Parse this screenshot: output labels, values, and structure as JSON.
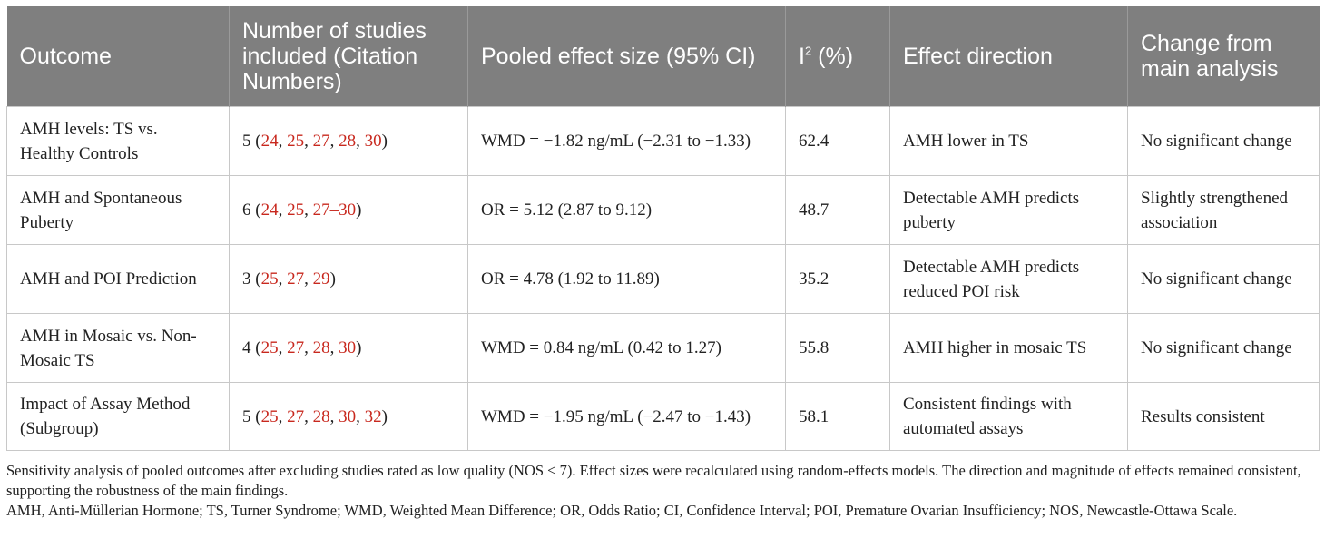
{
  "table": {
    "headers": {
      "outcome": "Outcome",
      "studies": "Number of studies included (Citation Numbers)",
      "effect": "Pooled effect size (95% CI)",
      "i2_base": "I",
      "i2_sup": "2",
      "i2_unit": " (%)",
      "direction": "Effect direction",
      "change": "Change from main analysis"
    },
    "rows": [
      {
        "outcome": "AMH levels: TS vs. Healthy Controls",
        "studies_count": "5 (",
        "cites": [
          "24",
          "25",
          "27",
          "28",
          "30"
        ],
        "studies_close": ")",
        "effect": "WMD = −1.82 ng/mL (−2.31 to −1.33)",
        "i2": "62.4",
        "direction": "AMH lower in TS",
        "change": "No significant change"
      },
      {
        "outcome": "AMH and Spontaneous Puberty",
        "studies_count": "6 (",
        "cites": [
          "24",
          "25",
          "27–30"
        ],
        "studies_close": ")",
        "effect": "OR = 5.12 (2.87 to 9.12)",
        "i2": "48.7",
        "direction": "Detectable AMH predicts puberty",
        "change": "Slightly strengthened association"
      },
      {
        "outcome": "AMH and POI Prediction",
        "studies_count": "3 (",
        "cites": [
          "25",
          "27",
          "29"
        ],
        "studies_close": ")",
        "effect": "OR = 4.78 (1.92 to 11.89)",
        "i2": "35.2",
        "direction": "Detectable AMH predicts reduced POI risk",
        "change": "No significant change"
      },
      {
        "outcome": "AMH in Mosaic vs. Non-Mosaic TS",
        "studies_count": "4 (",
        "cites": [
          "25",
          "27",
          "28",
          "30"
        ],
        "studies_close": ")",
        "effect": "WMD = 0.84 ng/mL (0.42 to 1.27)",
        "i2": "55.8",
        "direction": "AMH higher in mosaic TS",
        "change": "No significant change"
      },
      {
        "outcome": "Impact of Assay Method (Subgroup)",
        "studies_count": "5 (",
        "cites": [
          "25",
          "27",
          "28",
          "30",
          "32"
        ],
        "studies_close": ")",
        "effect": "WMD = −1.95 ng/mL (−2.47 to −1.43)",
        "i2": "58.1",
        "direction": "Consistent findings with automated assays",
        "change": "Results consistent"
      }
    ]
  },
  "footnotes": {
    "note1": "Sensitivity analysis of pooled outcomes after excluding studies rated as low quality (NOS < 7). Effect sizes were recalculated using random-effects models. The direction and magnitude of effects remained consistent, supporting the robustness of the main findings.",
    "note2": "AMH, Anti-Müllerian Hormone; TS, Turner Syndrome; WMD, Weighted Mean Difference; OR, Odds Ratio; CI, Confidence Interval; POI, Premature Ovarian Insufficiency; NOS, Newcastle-Ottawa Scale."
  }
}
